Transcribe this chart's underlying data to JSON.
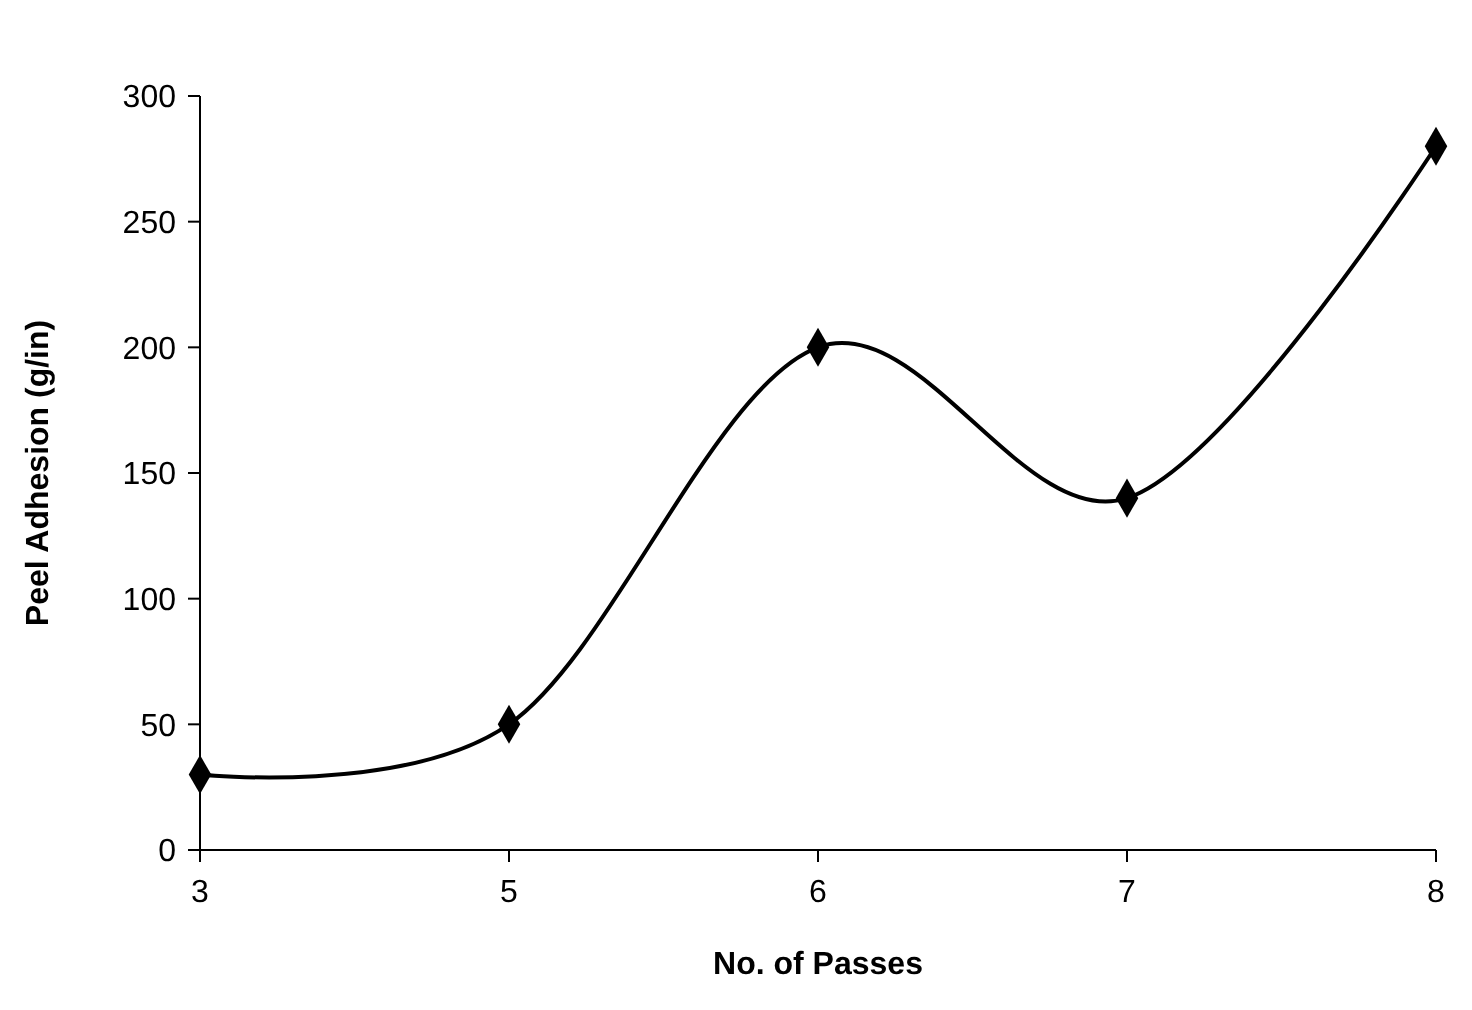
{
  "chart_data": {
    "type": "line",
    "xlabel": "No. of Passes",
    "ylabel": "Peel Adhesion (g/in)",
    "categories": [
      "3",
      "5",
      "6",
      "7",
      "8"
    ],
    "values": [
      30,
      50,
      200,
      140,
      280
    ],
    "color": "#000000",
    "marker": "diamond",
    "line_style": "solid",
    "ylim": [
      0,
      300
    ],
    "yticks": [
      0,
      50,
      100,
      150,
      200,
      250,
      300
    ]
  }
}
